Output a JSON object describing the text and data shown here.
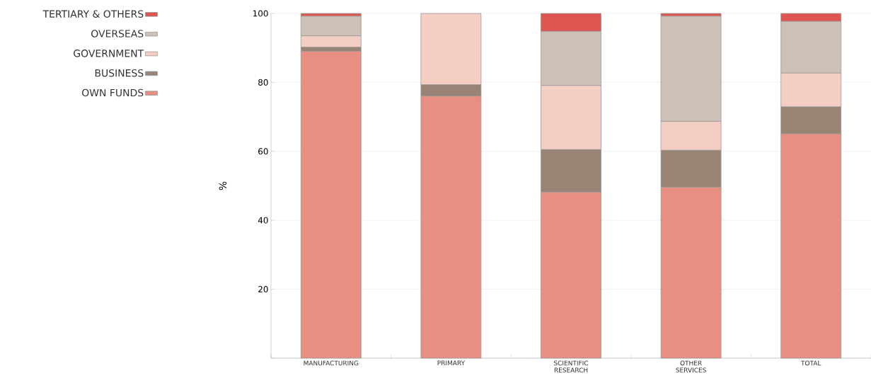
{
  "chart_data": {
    "type": "bar",
    "stacked": true,
    "ylabel": "%",
    "categories": [
      "MANUFACTURING",
      "PRIMARY",
      "SCIENTIFIC RESEARCH",
      "OTHER SERVICES",
      "TOTAL"
    ],
    "series": [
      {
        "name": "OWN FUNDS",
        "color": "#e78f80",
        "values": [
          89.0,
          76.0,
          48.1,
          49.6,
          65.1
        ]
      },
      {
        "name": "BUSINESS",
        "color": "#998374",
        "values": [
          1.2,
          3.3,
          12.4,
          10.7,
          7.8
        ]
      },
      {
        "name": "GOVERNMENT",
        "color": "#f4cdc3",
        "values": [
          3.3,
          20.7,
          18.6,
          8.4,
          9.8
        ]
      },
      {
        "name": "OVERSEAS",
        "color": "#cdc0b6",
        "values": [
          5.7,
          0,
          15.7,
          30.5,
          15.0
        ]
      },
      {
        "name": "TERTIARY & OTHERS",
        "color": "#de5550",
        "values": [
          0.8,
          0,
          5.2,
          0.8,
          2.3
        ]
      }
    ],
    "ylim": [
      0,
      100
    ],
    "yticks": [
      {
        "value": 0,
        "label": null
      },
      20,
      40,
      60,
      80,
      100
    ],
    "grid": "y",
    "legend": "top left"
  }
}
